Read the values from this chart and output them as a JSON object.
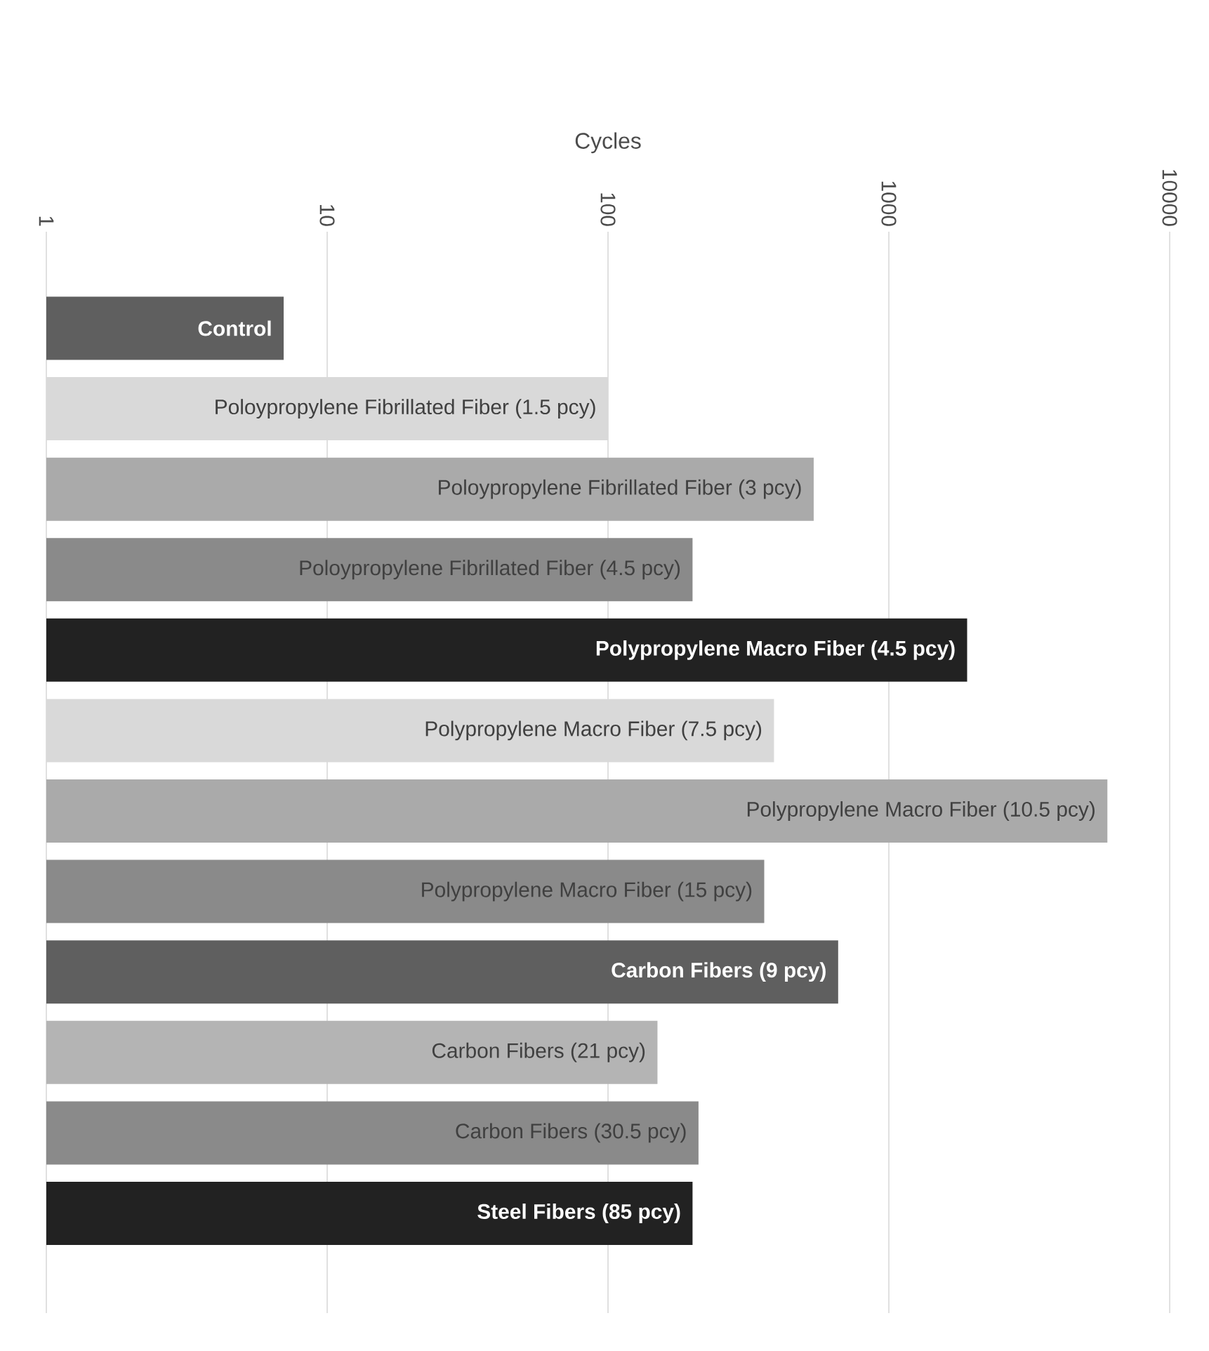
{
  "chart_data": {
    "type": "bar",
    "orientation": "horizontal",
    "xlabel": "Cycles",
    "log": "x",
    "grid": "x",
    "tick_labels": "x",
    "xlim": [
      1,
      10000
    ],
    "xticks": [
      1,
      10,
      100,
      1000,
      10000
    ],
    "categories": [
      "Control",
      "Poloypropylene Fibrillated Fiber (1.5 pcy)",
      "Poloypropylene Fibrillated Fiber (3 pcy)",
      "Poloypropylene Fibrillated Fiber (4.5 pcy)",
      "Polypropylene Macro Fiber (4.5 pcy)",
      "Polypropylene Macro Fiber (7.5 pcy)",
      "Polypropylene Macro Fiber (10.5 pcy)",
      "Polypropylene Macro Fiber (15 pcy)",
      "Carbon Fibers (9 pcy)",
      "Carbon Fibers (21 pcy)",
      "Carbon Fibers (30.5 pcy)",
      "Steel Fibers (85 pcy)"
    ],
    "values": [
      7,
      100,
      540,
      200,
      1900,
      390,
      6000,
      360,
      660,
      150,
      210,
      200
    ],
    "colors": [
      "#5f5f5f",
      "#d9d9d9",
      "#aaaaaa",
      "#8a8a8a",
      "#222222",
      "#d9d9d9",
      "#aaaaaa",
      "#8a8a8a",
      "#5f5f5f",
      "#b4b4b4",
      "#8a8a8a",
      "#222222"
    ]
  }
}
